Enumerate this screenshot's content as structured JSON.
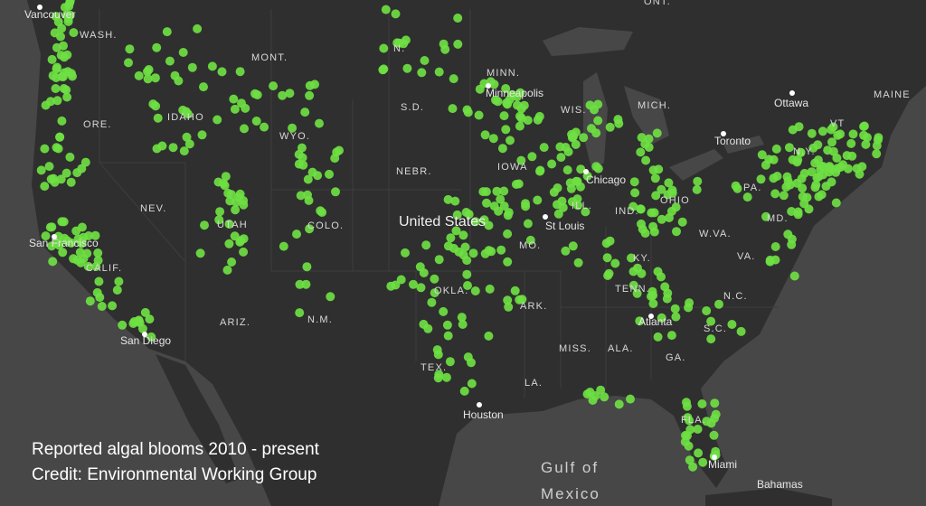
{
  "caption": [
    "Reported algal blooms 2010 - present",
    "Credit: Environmental Working Group"
  ],
  "labels": {
    "states": [
      "WASH.",
      "MONT.",
      "N.",
      "MINN.",
      "S.D.",
      "WIS.",
      "MICH.",
      "MAINE",
      "ONT.",
      "IDAHO",
      "ORE.",
      "WYO.",
      "VT",
      "N.Y.",
      "NEBR.",
      "IOWA",
      "PA.",
      "NEV.",
      "UTAH",
      "COLO.",
      "ILL.",
      "IND.",
      "OHIO",
      "CALIF.",
      "MO.",
      "W.VA.",
      "MD.",
      "VA.",
      "KY.",
      "OKLA.",
      "ARK.",
      "TENN.",
      "N.C.",
      "ARIZ.",
      "N.M.",
      "S.C.",
      "MISS.",
      "ALA.",
      "GA.",
      "TEX.",
      "LA.",
      "FLA."
    ],
    "cities": [
      "Vancouver",
      "Minneapolis",
      "Ottawa",
      "Toronto",
      "Chicago",
      "St Louis",
      "San Francisco",
      "San Diego",
      "Atlanta",
      "Houston",
      "Miami",
      "Bahamas"
    ],
    "country": "United States",
    "water": [
      "Gulf of",
      "Mexico"
    ]
  }
}
